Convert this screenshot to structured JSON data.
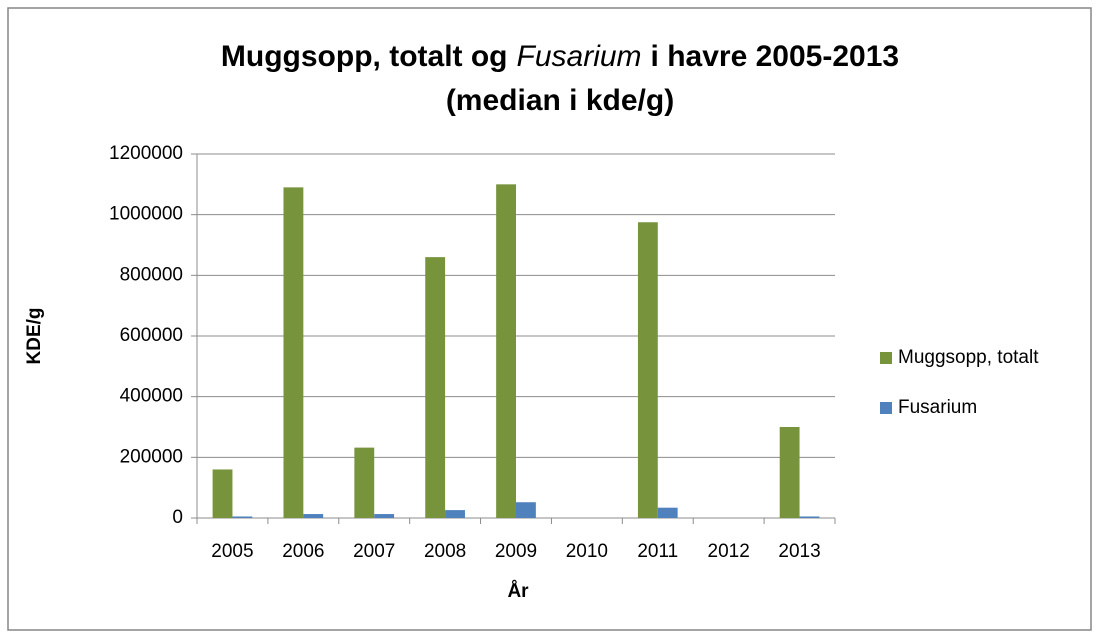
{
  "chart_data": {
    "type": "bar",
    "title_parts": [
      "Muggsopp, totalt og",
      "Fusarium",
      "i havre 2005-2013"
    ],
    "subtitle": "(median i kde/g)",
    "x_label": "År",
    "y_label": "KDE/g",
    "categories": [
      "2005",
      "2006",
      "2007",
      "2008",
      "2009",
      "2010",
      "2011",
      "2012",
      "2013"
    ],
    "series": [
      {
        "name": "Muggsopp, totalt",
        "color": "#77933c",
        "values": [
          160000,
          1090000,
          232000,
          860000,
          1100000,
          null,
          975000,
          null,
          300000
        ]
      },
      {
        "name": "Fusarium",
        "color": "#4f81bd",
        "values": [
          5000,
          13000,
          13000,
          26000,
          52000,
          null,
          34000,
          null,
          5000
        ]
      }
    ],
    "ylim": [
      0,
      1200000
    ],
    "yticks": [
      0,
      200000,
      400000,
      600000,
      800000,
      1000000,
      1200000
    ],
    "grid": true,
    "legend": "right"
  }
}
